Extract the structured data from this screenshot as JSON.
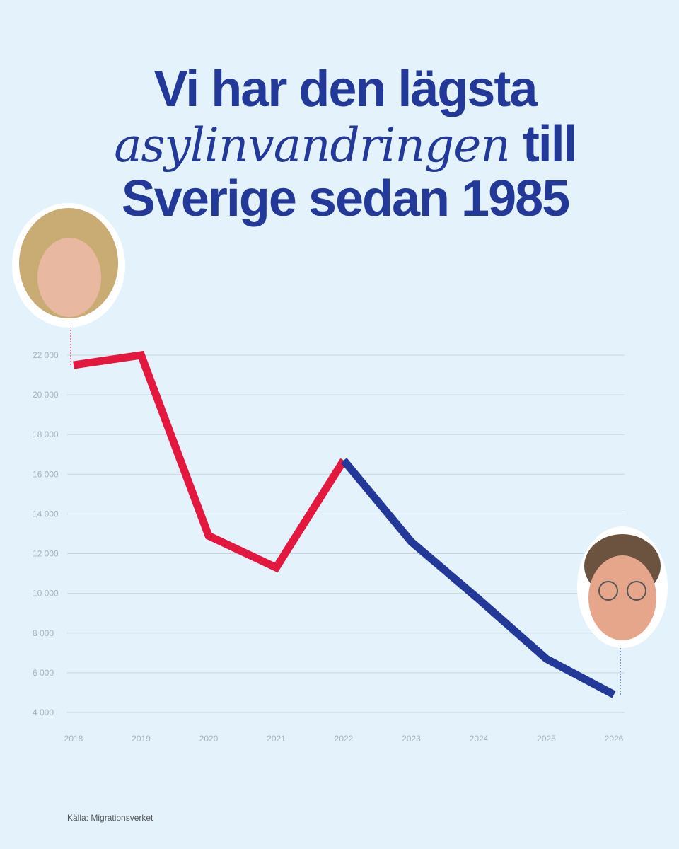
{
  "chart_data": {
    "type": "line",
    "title": [
      "Vi har den lägsta",
      "asylinvandringen",
      "till",
      "Sverige sedan 1985"
    ],
    "x": [
      2018,
      2019,
      2020,
      2021,
      2022,
      2023,
      2024,
      2025,
      2026
    ],
    "xlim": [
      2018,
      2026
    ],
    "xticks": [
      2018,
      2019,
      2020,
      2021,
      2022,
      2023,
      2024,
      2025,
      2026
    ],
    "ylim": [
      4000,
      22000
    ],
    "yticks": [
      {
        "value": 4000,
        "label": "4 000"
      },
      {
        "value": 6000,
        "label": "6 000"
      },
      {
        "value": 8000,
        "label": "8 000"
      },
      {
        "value": 10000,
        "label": "10 000"
      },
      {
        "value": 12000,
        "label": "12 000"
      },
      {
        "value": 14000,
        "label": "14 000"
      },
      {
        "value": 16000,
        "label": "16 000"
      },
      {
        "value": 18000,
        "label": "18 000"
      },
      {
        "value": 20000,
        "label": "20 000"
      },
      {
        "value": 22000,
        "label": "22 000"
      }
    ],
    "grid": true,
    "series": [
      {
        "color": "#e4173e",
        "values": [
          21500,
          22000,
          12900,
          11300,
          16700,
          null,
          null,
          null,
          null
        ]
      },
      {
        "color": "#22399a",
        "values": [
          null,
          null,
          null,
          null,
          16700,
          12600,
          9700,
          6700,
          4900
        ]
      }
    ],
    "source": "Källa: Migrationsverket"
  }
}
